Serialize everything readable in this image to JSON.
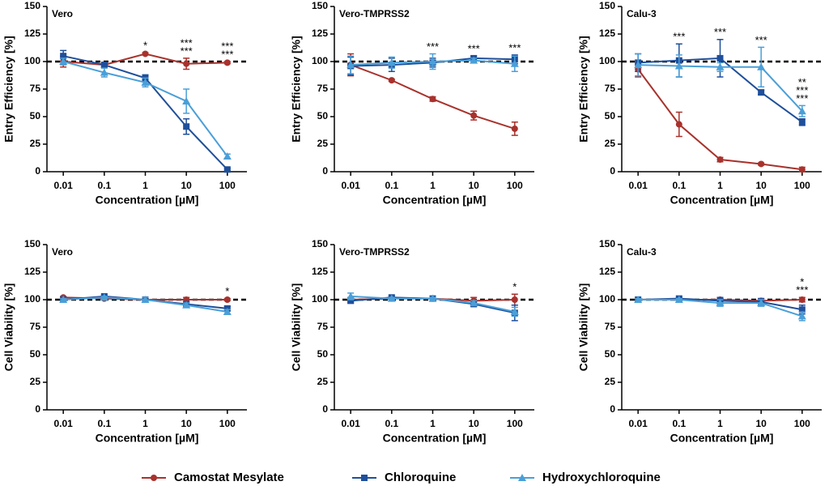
{
  "series_styles": [
    {
      "name": "Camostat Mesylate",
      "color": "#a8322d",
      "marker": "circle"
    },
    {
      "name": "Chloroquine",
      "color": "#1f4f9a",
      "marker": "square"
    },
    {
      "name": "Hydroxychloroquine",
      "color": "#4a9fd8",
      "marker": "triangle"
    }
  ],
  "chart_data": [
    {
      "type": "line",
      "title": "Vero",
      "xlabel": "Concentration [µM]",
      "ylabel": "Entry Efficiency [%]",
      "log_x": true,
      "x": [
        0.01,
        0.1,
        1,
        10,
        100
      ],
      "xlim": [
        0.004,
        300
      ],
      "xticks": [
        0.01,
        0.1,
        1,
        10,
        100
      ],
      "ylim": [
        0,
        150
      ],
      "yticks": [
        0,
        25,
        50,
        75,
        100,
        125,
        150
      ],
      "reference_line": 100,
      "series": [
        {
          "values": [
            100,
            97,
            107,
            98,
            99
          ],
          "errors": [
            5,
            2,
            1,
            5,
            1
          ]
        },
        {
          "values": [
            105,
            97,
            85,
            41,
            2
          ],
          "errors": [
            5,
            2,
            3,
            7,
            1
          ]
        },
        {
          "values": [
            100,
            90,
            81,
            64,
            14
          ],
          "errors": [
            3,
            4,
            4,
            11,
            2
          ]
        }
      ],
      "annotations": [
        {
          "x": 1,
          "label": "*",
          "color": "#4a9fd8"
        },
        {
          "x": 10,
          "label": "***",
          "color": "#4a9fd8"
        },
        {
          "x": 10,
          "label": "***",
          "color": "#1f4f9a"
        },
        {
          "x": 100,
          "label": "***",
          "color": "#4a9fd8"
        },
        {
          "x": 100,
          "label": "***",
          "color": "#1f4f9a"
        }
      ]
    },
    {
      "type": "line",
      "title": "Vero-TMPRSS2",
      "xlabel": "Concentration [µM]",
      "ylabel": "Entry Efficiency [%]",
      "log_x": true,
      "x": [
        0.01,
        0.1,
        1,
        10,
        100
      ],
      "xlim": [
        0.004,
        300
      ],
      "xticks": [
        0.01,
        0.1,
        1,
        10,
        100
      ],
      "ylim": [
        0,
        150
      ],
      "yticks": [
        0,
        25,
        50,
        75,
        100,
        125,
        150
      ],
      "reference_line": 100,
      "series": [
        {
          "values": [
            97,
            83,
            66,
            51,
            39
          ],
          "errors": [
            10,
            1,
            2,
            4,
            6
          ]
        },
        {
          "values": [
            96,
            97,
            99,
            103,
            102
          ],
          "errors": [
            8,
            6,
            4,
            2,
            4
          ]
        },
        {
          "values": [
            97,
            99,
            100,
            101,
            98
          ],
          "errors": [
            8,
            5,
            7,
            2,
            7
          ]
        }
      ],
      "annotations": [
        {
          "x": 1,
          "label": "***",
          "color": "#a8322d"
        },
        {
          "x": 10,
          "label": "***",
          "color": "#a8322d"
        },
        {
          "x": 100,
          "label": "***",
          "color": "#a8322d"
        }
      ]
    },
    {
      "type": "line",
      "title": "Calu-3",
      "xlabel": "Concentration [µM]",
      "ylabel": "Entry Efficiency [%]",
      "log_x": true,
      "x": [
        0.01,
        0.1,
        1,
        10,
        100
      ],
      "xlim": [
        0.004,
        300
      ],
      "xticks": [
        0.01,
        0.1,
        1,
        10,
        100
      ],
      "ylim": [
        0,
        150
      ],
      "yticks": [
        0,
        25,
        50,
        75,
        100,
        125,
        150
      ],
      "reference_line": 100,
      "series": [
        {
          "values": [
            93,
            43,
            11,
            7,
            2
          ],
          "errors": [
            7,
            11,
            2,
            1,
            2
          ]
        },
        {
          "values": [
            99,
            101,
            103,
            72,
            45
          ],
          "errors": [
            8,
            15,
            17,
            2,
            3
          ]
        },
        {
          "values": [
            97,
            96,
            95,
            95,
            55
          ],
          "errors": [
            10,
            10,
            4,
            18,
            5
          ]
        }
      ],
      "annotations": [
        {
          "x": 0.1,
          "label": "***",
          "color": "#a8322d"
        },
        {
          "x": 1,
          "label": "***",
          "color": "#a8322d"
        },
        {
          "x": 10,
          "label": "***",
          "color": "#a8322d"
        },
        {
          "x": 100,
          "label": "**",
          "color": "#4a9fd8"
        },
        {
          "x": 100,
          "label": "***",
          "color": "#1f4f9a"
        },
        {
          "x": 100,
          "label": "***",
          "color": "#a8322d"
        }
      ]
    },
    {
      "type": "line",
      "title": "Vero",
      "xlabel": "Concentration [µM]",
      "ylabel": "Cell Viability [%]",
      "log_x": true,
      "x": [
        0.01,
        0.1,
        1,
        10,
        100
      ],
      "xlim": [
        0.004,
        300
      ],
      "xticks": [
        0.01,
        0.1,
        1,
        10,
        100
      ],
      "ylim": [
        0,
        150
      ],
      "yticks": [
        0,
        25,
        50,
        75,
        100,
        125,
        150
      ],
      "reference_line": 100,
      "series": [
        {
          "values": [
            102,
            101,
            100,
            100,
            100
          ],
          "errors": [
            1,
            1,
            1,
            2,
            1
          ]
        },
        {
          "values": [
            100,
            103,
            100,
            96,
            92
          ],
          "errors": [
            1,
            1,
            2,
            2,
            2
          ]
        },
        {
          "values": [
            100,
            102,
            100,
            95,
            89
          ],
          "errors": [
            1,
            1,
            2,
            2,
            2
          ]
        }
      ],
      "annotations": [
        {
          "x": 100,
          "label": "*",
          "color": "#4a9fd8"
        }
      ]
    },
    {
      "type": "line",
      "title": "Vero-TMPRSS2",
      "xlabel": "Concentration [µM]",
      "ylabel": "Cell Viability [%]",
      "log_x": true,
      "x": [
        0.01,
        0.1,
        1,
        10,
        100
      ],
      "xlim": [
        0.004,
        300
      ],
      "xticks": [
        0.01,
        0.1,
        1,
        10,
        100
      ],
      "ylim": [
        0,
        150
      ],
      "yticks": [
        0,
        25,
        50,
        75,
        100,
        125,
        150
      ],
      "reference_line": 100,
      "series": [
        {
          "values": [
            100,
            101,
            101,
            99,
            100
          ],
          "errors": [
            2,
            1,
            1,
            3,
            5
          ]
        },
        {
          "values": [
            99,
            102,
            101,
            96,
            88
          ],
          "errors": [
            2,
            1,
            1,
            2,
            7
          ]
        },
        {
          "values": [
            103,
            101,
            101,
            97,
            89
          ],
          "errors": [
            3,
            1,
            1,
            2,
            4
          ]
        }
      ],
      "annotations": [
        {
          "x": 100,
          "label": "*",
          "color": "#1f4f9a"
        }
      ]
    },
    {
      "type": "line",
      "title": "Calu-3",
      "xlabel": "Concentration [µM]",
      "ylabel": "Cell Viability [%]",
      "log_x": true,
      "x": [
        0.01,
        0.1,
        1,
        10,
        100
      ],
      "xlim": [
        0.004,
        300
      ],
      "xticks": [
        0.01,
        0.1,
        1,
        10,
        100
      ],
      "ylim": [
        0,
        150
      ],
      "yticks": [
        0,
        25,
        50,
        75,
        100,
        125,
        150
      ],
      "reference_line": 100,
      "series": [
        {
          "values": [
            100,
            100,
            100,
            99,
            100
          ],
          "errors": [
            1,
            1,
            2,
            2,
            2
          ]
        },
        {
          "values": [
            100,
            101,
            99,
            98,
            91
          ],
          "errors": [
            1,
            1,
            3,
            3,
            4
          ]
        },
        {
          "values": [
            100,
            100,
            97,
            97,
            85
          ],
          "errors": [
            1,
            1,
            3,
            3,
            4
          ]
        }
      ],
      "annotations": [
        {
          "x": 100,
          "label": "*",
          "color": "#1f4f9a"
        },
        {
          "x": 100,
          "label": "***",
          "color": "#4a9fd8"
        }
      ]
    }
  ]
}
